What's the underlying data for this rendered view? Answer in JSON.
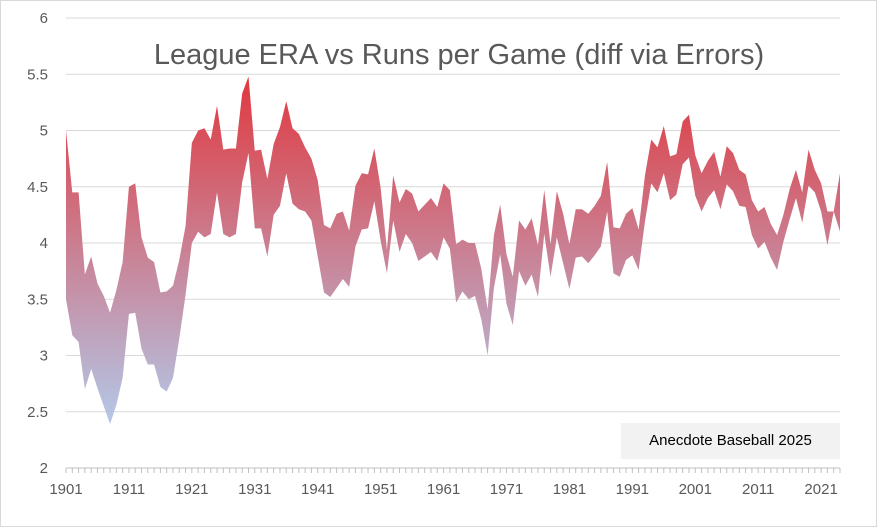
{
  "colors": {
    "high": "#e0383e",
    "low": "#b4c7e7",
    "grid": "#d9d9d9",
    "text": "#595959",
    "watermark_bg": "#f2f2f2"
  },
  "watermark": "Anecdote Baseball 2025",
  "chart_data": {
    "type": "area",
    "title": "League ERA vs Runs per Game (diff via Errors)",
    "xlabel": "",
    "ylabel": "",
    "ylim": [
      2,
      6
    ],
    "yticks": [
      "2",
      "2.5",
      "3",
      "3.5",
      "4",
      "4.5",
      "5",
      "5.5",
      "6"
    ],
    "xticks": [
      "1901",
      "1911",
      "1921",
      "1931",
      "1941",
      "1951",
      "1961",
      "1971",
      "1981",
      "1991",
      "2001",
      "2011",
      "2021"
    ],
    "grid": true,
    "legend": "none",
    "x": [
      1901,
      1902,
      1903,
      1904,
      1905,
      1906,
      1907,
      1908,
      1909,
      1910,
      1911,
      1912,
      1913,
      1914,
      1915,
      1916,
      1917,
      1918,
      1919,
      1920,
      1921,
      1922,
      1923,
      1924,
      1925,
      1926,
      1927,
      1928,
      1929,
      1930,
      1931,
      1932,
      1933,
      1934,
      1935,
      1936,
      1937,
      1938,
      1939,
      1940,
      1941,
      1942,
      1943,
      1944,
      1945,
      1946,
      1947,
      1948,
      1949,
      1950,
      1951,
      1952,
      1953,
      1954,
      1955,
      1956,
      1957,
      1958,
      1959,
      1960,
      1961,
      1962,
      1963,
      1964,
      1965,
      1966,
      1967,
      1968,
      1969,
      1970,
      1971,
      1972,
      1973,
      1974,
      1975,
      1976,
      1977,
      1978,
      1979,
      1980,
      1981,
      1982,
      1983,
      1984,
      1985,
      1986,
      1987,
      1988,
      1989,
      1990,
      1991,
      1992,
      1993,
      1994,
      1995,
      1996,
      1997,
      1998,
      1999,
      2000,
      2001,
      2002,
      2003,
      2004,
      2005,
      2006,
      2007,
      2008,
      2009,
      2010,
      2011,
      2012,
      2013,
      2014,
      2015,
      2016,
      2017,
      2018,
      2019,
      2020,
      2021,
      2022,
      2023,
      2024
    ],
    "series": [
      {
        "key": "upper",
        "values": [
          5.0,
          4.45,
          4.45,
          3.72,
          3.88,
          3.64,
          3.53,
          3.38,
          3.58,
          3.83,
          4.5,
          4.53,
          4.05,
          3.87,
          3.83,
          3.56,
          3.57,
          3.62,
          3.85,
          4.15,
          4.89,
          5.0,
          5.02,
          4.92,
          5.22,
          4.83,
          4.84,
          4.84,
          5.33,
          5.48,
          4.82,
          4.83,
          4.57,
          4.88,
          5.03,
          5.26,
          5.02,
          4.97,
          4.85,
          4.75,
          4.56,
          4.16,
          4.13,
          4.26,
          4.28,
          4.11,
          4.51,
          4.62,
          4.61,
          4.84,
          4.49,
          3.94,
          4.6,
          4.36,
          4.48,
          4.44,
          4.28,
          4.34,
          4.4,
          4.32,
          4.53,
          4.47,
          3.99,
          4.03,
          4.0,
          4.0,
          3.77,
          3.41,
          4.07,
          4.34,
          3.9,
          3.7,
          4.2,
          4.12,
          4.22,
          3.98,
          4.47,
          3.99,
          4.46,
          4.26,
          3.99,
          4.3,
          4.3,
          4.26,
          4.33,
          4.42,
          4.72,
          4.14,
          4.13,
          4.26,
          4.31,
          4.12,
          4.6,
          4.92,
          4.85,
          5.04,
          4.77,
          4.79,
          5.08,
          5.14,
          4.78,
          4.62,
          4.73,
          4.81,
          4.59,
          4.86,
          4.8,
          4.65,
          4.61,
          4.38,
          4.28,
          4.32,
          4.17,
          4.07,
          4.25,
          4.48,
          4.65,
          4.45,
          4.83,
          4.65,
          4.53,
          4.28,
          4.28,
          4.62
        ]
      },
      {
        "key": "lower",
        "values": [
          3.5,
          3.18,
          3.12,
          2.7,
          2.88,
          2.71,
          2.55,
          2.39,
          2.56,
          2.8,
          3.37,
          3.38,
          3.06,
          2.92,
          2.92,
          2.72,
          2.68,
          2.8,
          3.15,
          3.54,
          4.0,
          4.1,
          4.05,
          4.08,
          4.45,
          4.08,
          4.05,
          4.08,
          4.54,
          4.8,
          4.13,
          4.13,
          3.88,
          4.25,
          4.33,
          4.62,
          4.35,
          4.3,
          4.28,
          4.2,
          3.88,
          3.56,
          3.52,
          3.6,
          3.68,
          3.61,
          3.97,
          4.12,
          4.13,
          4.37,
          4.02,
          3.73,
          4.2,
          3.92,
          4.08,
          4.0,
          3.84,
          3.88,
          3.92,
          3.84,
          4.05,
          3.95,
          3.47,
          3.57,
          3.5,
          3.53,
          3.32,
          3.0,
          3.6,
          3.9,
          3.46,
          3.27,
          3.75,
          3.62,
          3.72,
          3.52,
          4.08,
          3.7,
          4.05,
          3.82,
          3.59,
          3.87,
          3.88,
          3.82,
          3.89,
          3.97,
          4.28,
          3.73,
          3.7,
          3.85,
          3.89,
          3.76,
          4.19,
          4.53,
          4.45,
          4.62,
          4.38,
          4.43,
          4.7,
          4.76,
          4.42,
          4.28,
          4.4,
          4.47,
          4.3,
          4.52,
          4.46,
          4.33,
          4.32,
          4.07,
          3.95,
          4.01,
          3.87,
          3.76,
          4.01,
          4.21,
          4.4,
          4.18,
          4.51,
          4.45,
          4.28,
          3.98,
          4.28,
          4.1
        ]
      }
    ]
  }
}
